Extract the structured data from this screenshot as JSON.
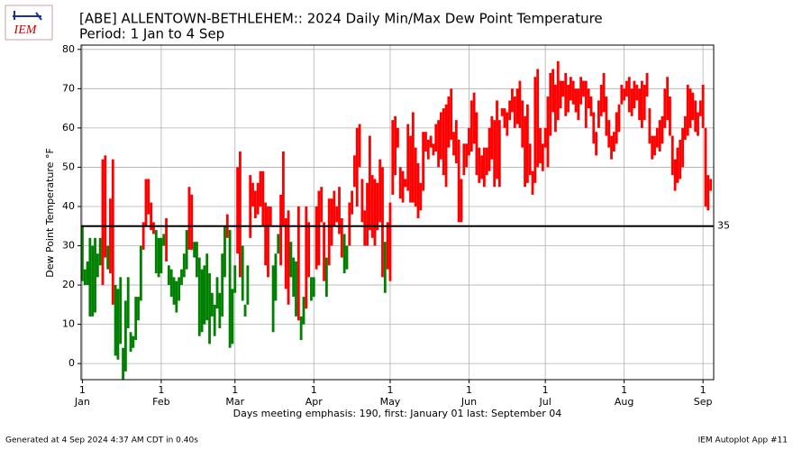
{
  "chart_data": {
    "type": "range_bar",
    "title": "[ABE] ALLENTOWN-BETHLEHEM:: 2024 Daily Min/Max Dew Point Temperature",
    "subtitle": "Period: 1 Jan to 4 Sep",
    "logo_text": "IEM",
    "ylabel": "Dew Point Temperature °F",
    "xlabel": "Days meeting emphasis: 190, first: January 01 last: September 04",
    "footer_left": "Generated at 4 Sep 2024 4:37 AM CDT in 0.40s",
    "footer_right": "IEM Autoplot App #11",
    "threshold": 35,
    "threshold_label": "35",
    "emphasis_color": "#ff0000",
    "other_color": "#008000",
    "grid": true,
    "xlim": [
      -0.5,
      248.2
    ],
    "ylim": [
      -4.1,
      81.1
    ],
    "yticks": [
      0,
      10,
      20,
      30,
      40,
      50,
      60,
      70,
      80
    ],
    "xticks": [
      {
        "value": 0,
        "label": "1\nJan"
      },
      {
        "value": 31,
        "label": "1\nFeb"
      },
      {
        "value": 60,
        "label": "1\nMar"
      },
      {
        "value": 91,
        "label": "1\nApr"
      },
      {
        "value": 121,
        "label": "1\nMay"
      },
      {
        "value": 152,
        "label": "1\nJun"
      },
      {
        "value": 182,
        "label": "1\nJul"
      },
      {
        "value": 213,
        "label": "1\nAug"
      },
      {
        "value": 244,
        "label": "1\nSep"
      }
    ],
    "x": [
      0,
      1,
      2,
      3,
      4,
      5,
      6,
      7,
      8,
      9,
      10,
      11,
      12,
      13,
      14,
      15,
      16,
      17,
      18,
      19,
      20,
      21,
      22,
      23,
      24,
      25,
      26,
      27,
      28,
      29,
      30,
      31,
      32,
      33,
      34,
      35,
      36,
      37,
      38,
      39,
      40,
      41,
      42,
      43,
      44,
      45,
      46,
      47,
      48,
      49,
      50,
      51,
      52,
      53,
      54,
      55,
      56,
      57,
      58,
      59,
      60,
      61,
      62,
      63,
      64,
      65,
      66,
      67,
      68,
      69,
      70,
      71,
      72,
      73,
      74,
      75,
      76,
      77,
      78,
      79,
      80,
      81,
      82,
      83,
      84,
      85,
      86,
      87,
      88,
      89,
      90,
      91,
      92,
      93,
      94,
      95,
      96,
      97,
      98,
      99,
      100,
      101,
      102,
      103,
      104,
      105,
      106,
      107,
      108,
      109,
      110,
      111,
      112,
      113,
      114,
      115,
      116,
      117,
      118,
      119,
      120,
      121,
      122,
      123,
      124,
      125,
      126,
      127,
      128,
      129,
      130,
      131,
      132,
      133,
      134,
      135,
      136,
      137,
      138,
      139,
      140,
      141,
      142,
      143,
      144,
      145,
      146,
      147,
      148,
      149,
      150,
      151,
      152,
      153,
      154,
      155,
      156,
      157,
      158,
      159,
      160,
      161,
      162,
      163,
      164,
      165,
      166,
      167,
      168,
      169,
      170,
      171,
      172,
      173,
      174,
      175,
      176,
      177,
      178,
      179,
      180,
      181,
      182,
      183,
      184,
      185,
      186,
      187,
      188,
      189,
      190,
      191,
      192,
      193,
      194,
      195,
      196,
      197,
      198,
      199,
      200,
      201,
      202,
      203,
      204,
      205,
      206,
      207,
      208,
      209,
      210,
      211,
      212,
      213,
      214,
      215,
      216,
      217,
      218,
      219,
      220,
      221,
      222,
      223,
      224,
      225,
      226,
      227,
      228,
      229,
      230,
      231,
      232,
      233,
      234,
      235,
      236,
      237,
      238,
      239,
      240,
      241,
      242,
      243,
      244,
      245,
      246,
      247
    ],
    "low": [
      21,
      20,
      20,
      12,
      12,
      13,
      22,
      25,
      20,
      27,
      24,
      23,
      15,
      2,
      1,
      5,
      -4,
      -2,
      9,
      3,
      4,
      6,
      11,
      16,
      29,
      35,
      38,
      34,
      33,
      23,
      22,
      23,
      30,
      26,
      20,
      17,
      15,
      13,
      16,
      20,
      22,
      24,
      29,
      29,
      27,
      22,
      7,
      8,
      10,
      11,
      5,
      12,
      7,
      14,
      9,
      12,
      22,
      32,
      4,
      5,
      18,
      28,
      22,
      16,
      12,
      15,
      32,
      40,
      37,
      38,
      40,
      35,
      25,
      22,
      35,
      8,
      16,
      28,
      25,
      35,
      19,
      15,
      22,
      17,
      12,
      11,
      6,
      10,
      14,
      22,
      16,
      17,
      24,
      25,
      36,
      21,
      17,
      25,
      30,
      35,
      36,
      33,
      27,
      23,
      24,
      30,
      38,
      45,
      40,
      50,
      36,
      30,
      30,
      34,
      32,
      30,
      34,
      36,
      22,
      18,
      24,
      21,
      43,
      48,
      55,
      42,
      41,
      45,
      44,
      41,
      41,
      40,
      37,
      39,
      44,
      54,
      52,
      55,
      53,
      54,
      50,
      52,
      48,
      45,
      55,
      57,
      53,
      51,
      36,
      36,
      48,
      50,
      53,
      54,
      56,
      48,
      46,
      47,
      45,
      48,
      49,
      52,
      45,
      47,
      45,
      63,
      60,
      58,
      62,
      64,
      60,
      61,
      60,
      55,
      45,
      46,
      48,
      43,
      46,
      50,
      51,
      49,
      55,
      50,
      58,
      64,
      59,
      62,
      65,
      68,
      63,
      64,
      67,
      66,
      64,
      62,
      66,
      68,
      60,
      65,
      63,
      56,
      53,
      60,
      63,
      64,
      58,
      55,
      52,
      54,
      56,
      59,
      66,
      67,
      68,
      64,
      63,
      65,
      67,
      62,
      60,
      62,
      68,
      56,
      52,
      53,
      55,
      54,
      56,
      60,
      62,
      58,
      48,
      44,
      46,
      47,
      50,
      57,
      58,
      60,
      62,
      59,
      58,
      63,
      60,
      40,
      39,
      44
    ],
    "high": [
      35,
      24,
      26,
      32,
      30,
      32,
      28,
      32,
      52,
      53,
      30,
      42,
      52,
      20,
      19,
      22,
      4,
      16,
      22,
      8,
      7,
      17,
      17,
      30,
      36,
      47,
      47,
      41,
      36,
      34,
      32,
      32,
      33,
      37,
      25,
      24,
      22,
      21,
      22,
      24,
      28,
      34,
      45,
      43,
      31,
      31,
      27,
      24,
      25,
      28,
      23,
      18,
      15,
      22,
      18,
      28,
      35,
      38,
      34,
      19,
      25,
      50,
      54,
      30,
      15,
      25,
      48,
      46,
      44,
      46,
      49,
      49,
      41,
      40,
      40,
      25,
      28,
      33,
      43,
      54,
      37,
      39,
      31,
      27,
      26,
      40,
      12,
      17,
      40,
      36,
      22,
      22,
      40,
      44,
      45,
      36,
      27,
      42,
      42,
      44,
      40,
      45,
      37,
      33,
      30,
      41,
      44,
      53,
      60,
      61,
      47,
      39,
      46,
      58,
      48,
      47,
      46,
      52,
      50,
      31,
      36,
      41,
      62,
      63,
      60,
      50,
      49,
      47,
      61,
      58,
      64,
      55,
      51,
      46,
      59,
      59,
      57,
      58,
      56,
      61,
      62,
      64,
      65,
      66,
      68,
      70,
      59,
      62,
      57,
      47,
      56,
      56,
      60,
      67,
      69,
      64,
      55,
      53,
      55,
      55,
      60,
      63,
      62,
      67,
      62,
      65,
      65,
      64,
      67,
      70,
      68,
      70,
      72,
      67,
      63,
      66,
      56,
      49,
      73,
      75,
      60,
      56,
      60,
      68,
      74,
      75,
      71,
      77,
      72,
      72,
      74,
      71,
      73,
      72,
      70,
      70,
      73,
      72,
      72,
      70,
      68,
      64,
      59,
      67,
      71,
      74,
      68,
      62,
      58,
      59,
      64,
      66,
      71,
      70,
      72,
      73,
      70,
      72,
      71,
      70,
      72,
      71,
      74,
      65,
      58,
      58,
      60,
      62,
      63,
      70,
      73,
      68,
      58,
      52,
      55,
      57,
      60,
      63,
      71,
      70,
      69,
      67,
      64,
      67,
      71,
      60,
      48,
      47
    ]
  }
}
